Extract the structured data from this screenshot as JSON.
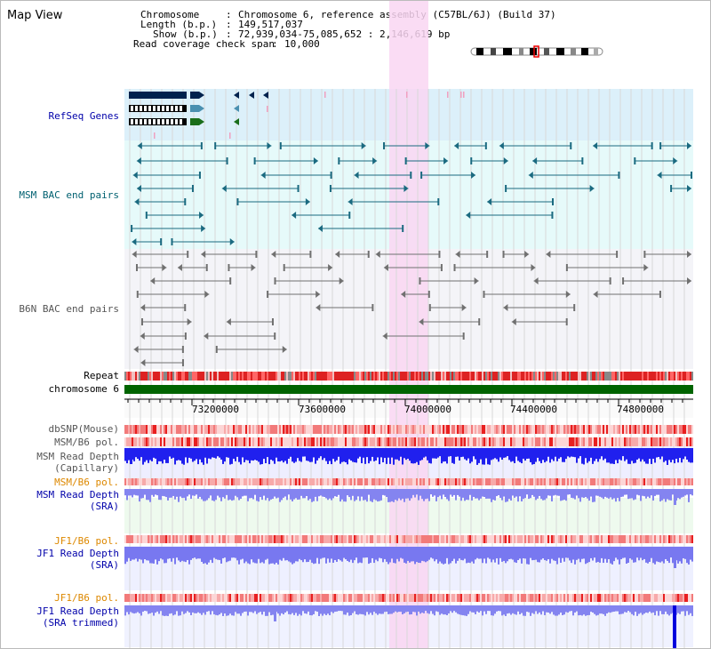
{
  "page": {
    "title": "Map View"
  },
  "info": {
    "chromosome_key": "Chromosome",
    "chromosome_val": "Chromosome 6, reference assembly (C57BL/6J) (Build 37)",
    "length_key": "Length (b.p.)",
    "length_val": "149,517,037",
    "show_key": "Show (b.p.)",
    "show_val": "72,939,034-75,085,652 : 2,146,619 bp",
    "coverage_key": "Read coverage check span",
    "coverage_val": "10,000"
  },
  "axis": {
    "ticks": [
      "73200000",
      "73600000",
      "74000000",
      "74400000",
      "74800000"
    ]
  },
  "tracks": {
    "refseq": "RefSeq Genes",
    "msm_bac": "MSM BAC end pairs",
    "b6n_bac": "B6N BAC end pairs",
    "repeat": "Repeat",
    "chromosome": "chromosome 6",
    "dbsnp": "dbSNP(Mouse)",
    "msm_b6_pol": "MSM/B6 pol.",
    "msm_rd_cap_1": "MSM Read Depth",
    "msm_rd_cap_2": "(Capillary)",
    "msm_b6_pol_2": "MSM/B6 pol.",
    "msm_rd_sra_1": "MSM Read Depth",
    "msm_rd_sra_2": "(SRA)",
    "jf1_b6_pol": "JF1/B6 pol.",
    "jf1_rd_sra_1": "JF1 Read Depth",
    "jf1_rd_sra_2": "(SRA)",
    "jf1_b6_pol_2": "JF1/B6 pol.",
    "jf1_rd_trim_1": "JF1 Read Depth",
    "jf1_rd_trim_2": "(SRA trimmed)"
  },
  "colors": {
    "highlight": "#f9d6f2",
    "refseq_bg": "#dcf0fa",
    "msm_bg": "#e6fafa",
    "b6n_bg": "#f4f4f8",
    "label_blue": "#0000aa",
    "label_teal": "#006070",
    "label_gray": "#555555",
    "label_orange": "#dd8800",
    "chrom_green": "#006400"
  }
}
